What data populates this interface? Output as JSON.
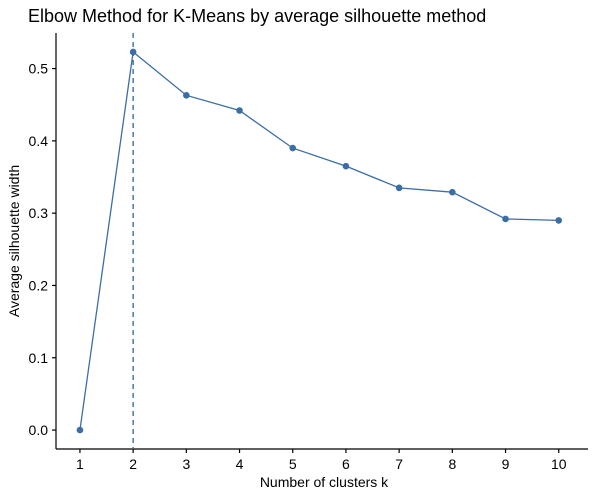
{
  "chart_data": {
    "type": "line",
    "title": "Elbow Method for K-Means by average silhouette method",
    "xlabel": "Number of clusters k",
    "ylabel": "Average silhouette width",
    "x": [
      1,
      2,
      3,
      4,
      5,
      6,
      7,
      8,
      9,
      10
    ],
    "series": [
      {
        "values": [
          0.0,
          0.523,
          0.463,
          0.442,
          0.39,
          0.365,
          0.335,
          0.329,
          0.292,
          0.29
        ]
      }
    ],
    "xticks": [
      "1",
      "2",
      "3",
      "4",
      "5",
      "6",
      "7",
      "8",
      "9",
      "10"
    ],
    "yticks": [
      "0.0",
      "0.1",
      "0.2",
      "0.3",
      "0.4",
      "0.5"
    ],
    "ylim": [
      -0.0262,
      0.5492
    ],
    "xlim": [
      0.55,
      10.55
    ],
    "optimal_k": 2,
    "grid": false,
    "legend": "none",
    "colors": {
      "line": "#3B6EA5",
      "point": "#3B6EA5",
      "vline": "#3B6EA5",
      "axis": "#000000"
    }
  }
}
